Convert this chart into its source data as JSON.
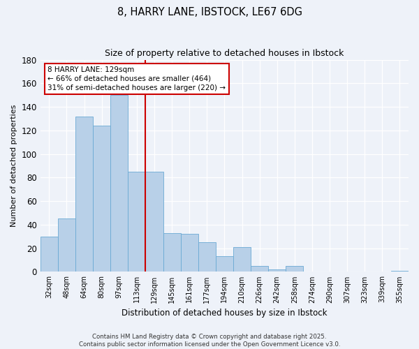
{
  "title": "8, HARRY LANE, IBSTOCK, LE67 6DG",
  "subtitle": "Size of property relative to detached houses in Ibstock",
  "xlabel": "Distribution of detached houses by size in Ibstock",
  "ylabel": "Number of detached properties",
  "categories": [
    "32sqm",
    "48sqm",
    "64sqm",
    "80sqm",
    "97sqm",
    "113sqm",
    "129sqm",
    "145sqm",
    "161sqm",
    "177sqm",
    "194sqm",
    "210sqm",
    "226sqm",
    "242sqm",
    "258sqm",
    "274sqm",
    "290sqm",
    "307sqm",
    "323sqm",
    "339sqm",
    "355sqm"
  ],
  "values": [
    30,
    45,
    132,
    124,
    150,
    85,
    85,
    33,
    32,
    25,
    13,
    21,
    5,
    2,
    5,
    0,
    0,
    0,
    0,
    0,
    1
  ],
  "bar_color": "#b8d0e8",
  "bar_edge_color": "#6aaad4",
  "vline_color": "#cc0000",
  "annotation_text": "8 HARRY LANE: 129sqm\n← 66% of detached houses are smaller (464)\n31% of semi-detached houses are larger (220) →",
  "annotation_box_color": "#ffffff",
  "annotation_box_edge_color": "#cc0000",
  "ylim": [
    0,
    180
  ],
  "yticks": [
    0,
    20,
    40,
    60,
    80,
    100,
    120,
    140,
    160,
    180
  ],
  "footer_line1": "Contains HM Land Registry data © Crown copyright and database right 2025.",
  "footer_line2": "Contains public sector information licensed under the Open Government Licence v3.0.",
  "bg_color": "#eef2f9",
  "plot_bg_color": "#eef2f9",
  "grid_color": "#ffffff"
}
